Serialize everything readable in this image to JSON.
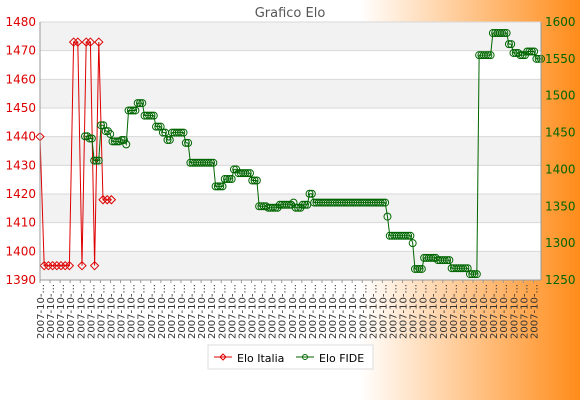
{
  "chart_data": {
    "type": "line",
    "title": "Grafico Elo",
    "legend_position": "bottom-center",
    "grid": true,
    "colors": {
      "background_left": "#ffffff",
      "background_right": "#ff8c1a",
      "band_light": "#f2f2f2",
      "italia": "#dd0000",
      "fide": "#006600"
    },
    "y_left": {
      "min": 1390,
      "max": 1480,
      "step": 10,
      "ticks": [
        "1390",
        "1400",
        "1410",
        "1420",
        "1430",
        "1440",
        "1450",
        "1460",
        "1470",
        "1480"
      ]
    },
    "y_right": {
      "min": 1250,
      "max": 1600,
      "step": 50,
      "ticks": [
        "1250",
        "1300",
        "1350",
        "1400",
        "1450",
        "1500",
        "1550",
        "1600"
      ]
    },
    "x_tick_label": "2007-10-...",
    "series": [
      {
        "name": "Elo Italia",
        "axis": "left",
        "marker": "diamond",
        "values": [
          1440,
          1395,
          1395,
          1395,
          1395,
          1395,
          1395,
          1395,
          1473,
          1473,
          1395,
          1473,
          1473,
          1395,
          1473,
          1418,
          1418,
          1418
        ]
      },
      {
        "name": "Elo FIDE",
        "axis": "right",
        "marker": "circle",
        "values": [
          1445,
          1445,
          1442,
          1442,
          1412,
          1412,
          1412,
          1460,
          1460,
          1452,
          1452,
          1448,
          1438,
          1438,
          1438,
          1438,
          1440,
          1440,
          1434,
          1480,
          1480,
          1480,
          1480,
          1490,
          1490,
          1490,
          1473,
          1473,
          1473,
          1473,
          1473,
          1458,
          1458,
          1458,
          1450,
          1450,
          1440,
          1440,
          1450,
          1450,
          1450,
          1450,
          1450,
          1450,
          1436,
          1436,
          1409,
          1409,
          1409,
          1409,
          1409,
          1409,
          1409,
          1409,
          1409,
          1409,
          1409,
          1377,
          1377,
          1377,
          1377,
          1387,
          1387,
          1387,
          1387,
          1400,
          1400,
          1395,
          1395,
          1395,
          1395,
          1395,
          1395,
          1385,
          1385,
          1385,
          1350,
          1350,
          1350,
          1350,
          1348,
          1348,
          1348,
          1348,
          1348,
          1352,
          1352,
          1352,
          1352,
          1352,
          1352,
          1355,
          1348,
          1348,
          1348,
          1352,
          1352,
          1352,
          1367,
          1367,
          1355,
          1355,
          1355,
          1355,
          1355,
          1355,
          1355,
          1355,
          1355,
          1355,
          1355,
          1355,
          1355,
          1355,
          1355,
          1355,
          1355,
          1355,
          1355,
          1355,
          1355,
          1355,
          1355,
          1355,
          1355,
          1355,
          1355,
          1355,
          1355,
          1355,
          1355,
          1355,
          1336,
          1310,
          1310,
          1310,
          1310,
          1310,
          1310,
          1310,
          1310,
          1310,
          1310,
          1300,
          1265,
          1265,
          1265,
          1265,
          1280,
          1280,
          1280,
          1280,
          1280,
          1280,
          1277,
          1277,
          1277,
          1277,
          1277,
          1277,
          1266,
          1266,
          1266,
          1266,
          1266,
          1266,
          1266,
          1266,
          1258,
          1258,
          1258,
          1258,
          1555,
          1555,
          1555,
          1555,
          1555,
          1555,
          1585,
          1585,
          1585,
          1585,
          1585,
          1585,
          1585,
          1570,
          1570,
          1558,
          1558,
          1558,
          1555,
          1555,
          1555,
          1560,
          1560,
          1560,
          1560,
          1550,
          1550,
          1550
        ]
      }
    ]
  }
}
